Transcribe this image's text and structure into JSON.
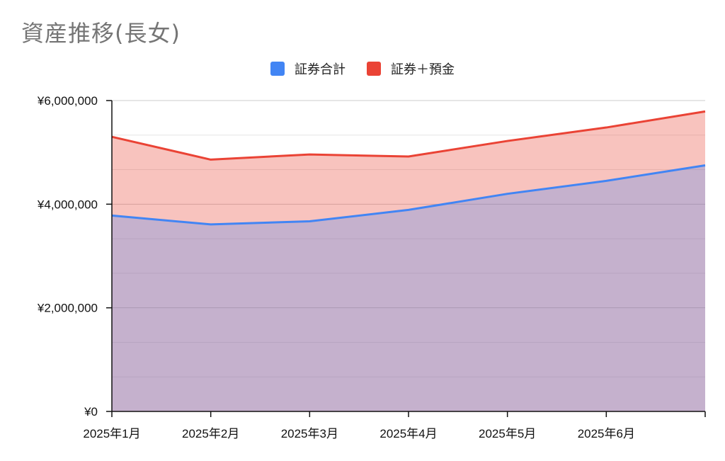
{
  "title": "資産推移(長女)",
  "colors": {
    "series1": "#4285f4",
    "series2": "#ea4335"
  },
  "chart_data": {
    "type": "area",
    "title": "資産推移(長女)",
    "x": [
      "2025年1月",
      "2025年2月",
      "2025年3月",
      "2025年4月",
      "2025年5月",
      "2025年6月",
      ""
    ],
    "ylim": [
      0,
      6000000
    ],
    "yticks": [
      "¥0",
      "¥2,000,000",
      "¥4,000,000",
      "¥6,000,000"
    ],
    "ytick_values": [
      0,
      2000000,
      4000000,
      6000000
    ],
    "grid": true,
    "legend_position": "top",
    "series": [
      {
        "name": "証券合計",
        "color": "#4285f4",
        "values": [
          3780000,
          3610000,
          3670000,
          3890000,
          4200000,
          4450000,
          4750000
        ]
      },
      {
        "name": "証券＋預金",
        "color": "#ea4335",
        "values": [
          5300000,
          4860000,
          4960000,
          4920000,
          5220000,
          5480000,
          5790000
        ]
      }
    ]
  }
}
